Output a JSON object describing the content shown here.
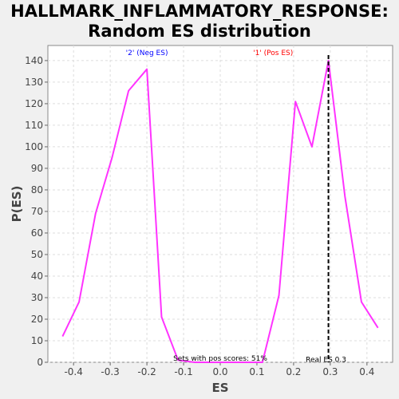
{
  "chart_data": {
    "type": "line",
    "title": "HALLMARK_INFLAMMATORY_RESPONSE:",
    "subtitle": "Random ES distribution",
    "xlabel": "ES",
    "ylabel": "P(ES)",
    "xlim": [
      -0.47,
      0.47
    ],
    "ylim": [
      0,
      147
    ],
    "x_ticks": [
      -0.4,
      -0.3,
      -0.2,
      -0.1,
      0.0,
      0.1,
      0.2,
      0.3,
      0.4
    ],
    "x_tick_labels": [
      "-0.4",
      "-0.3",
      "-0.2",
      "-0.1",
      "0.0",
      "0.1",
      "0.2",
      "0.3",
      "0.4"
    ],
    "y_ticks": [
      0,
      10,
      20,
      30,
      40,
      50,
      60,
      70,
      80,
      90,
      100,
      110,
      120,
      130,
      140
    ],
    "y_tick_labels": [
      "0",
      "10",
      "20",
      "30",
      "40",
      "50",
      "60",
      "70",
      "80",
      "90",
      "100",
      "110",
      "120",
      "130",
      "140"
    ],
    "grid": true,
    "series": [
      {
        "color": "#ff33ff",
        "x": [
          -0.43,
          -0.385,
          -0.34,
          -0.295,
          -0.25,
          -0.2,
          -0.16,
          -0.115,
          -0.07,
          -0.025,
          0.02,
          0.065,
          0.115,
          0.16,
          0.205,
          0.25,
          0.295,
          0.34,
          0.385,
          0.43
        ],
        "y": [
          12,
          28,
          69,
          95,
          126,
          136,
          21,
          1,
          0,
          0,
          0,
          0,
          0,
          31,
          121,
          100,
          140,
          77,
          28,
          16
        ]
      }
    ],
    "real_es": {
      "x": 0.295,
      "label": "Real ES 0.3",
      "color": "#000000",
      "style": "dashed"
    },
    "annotations": [
      {
        "text": "'2' (Neg ES)",
        "x": -0.2,
        "color": "#0000ff"
      },
      {
        "text": "'1' (Pos ES)",
        "x": 0.205,
        "color": "#ff0000"
      }
    ],
    "footnote": "Sets with pos scores: 51%"
  }
}
